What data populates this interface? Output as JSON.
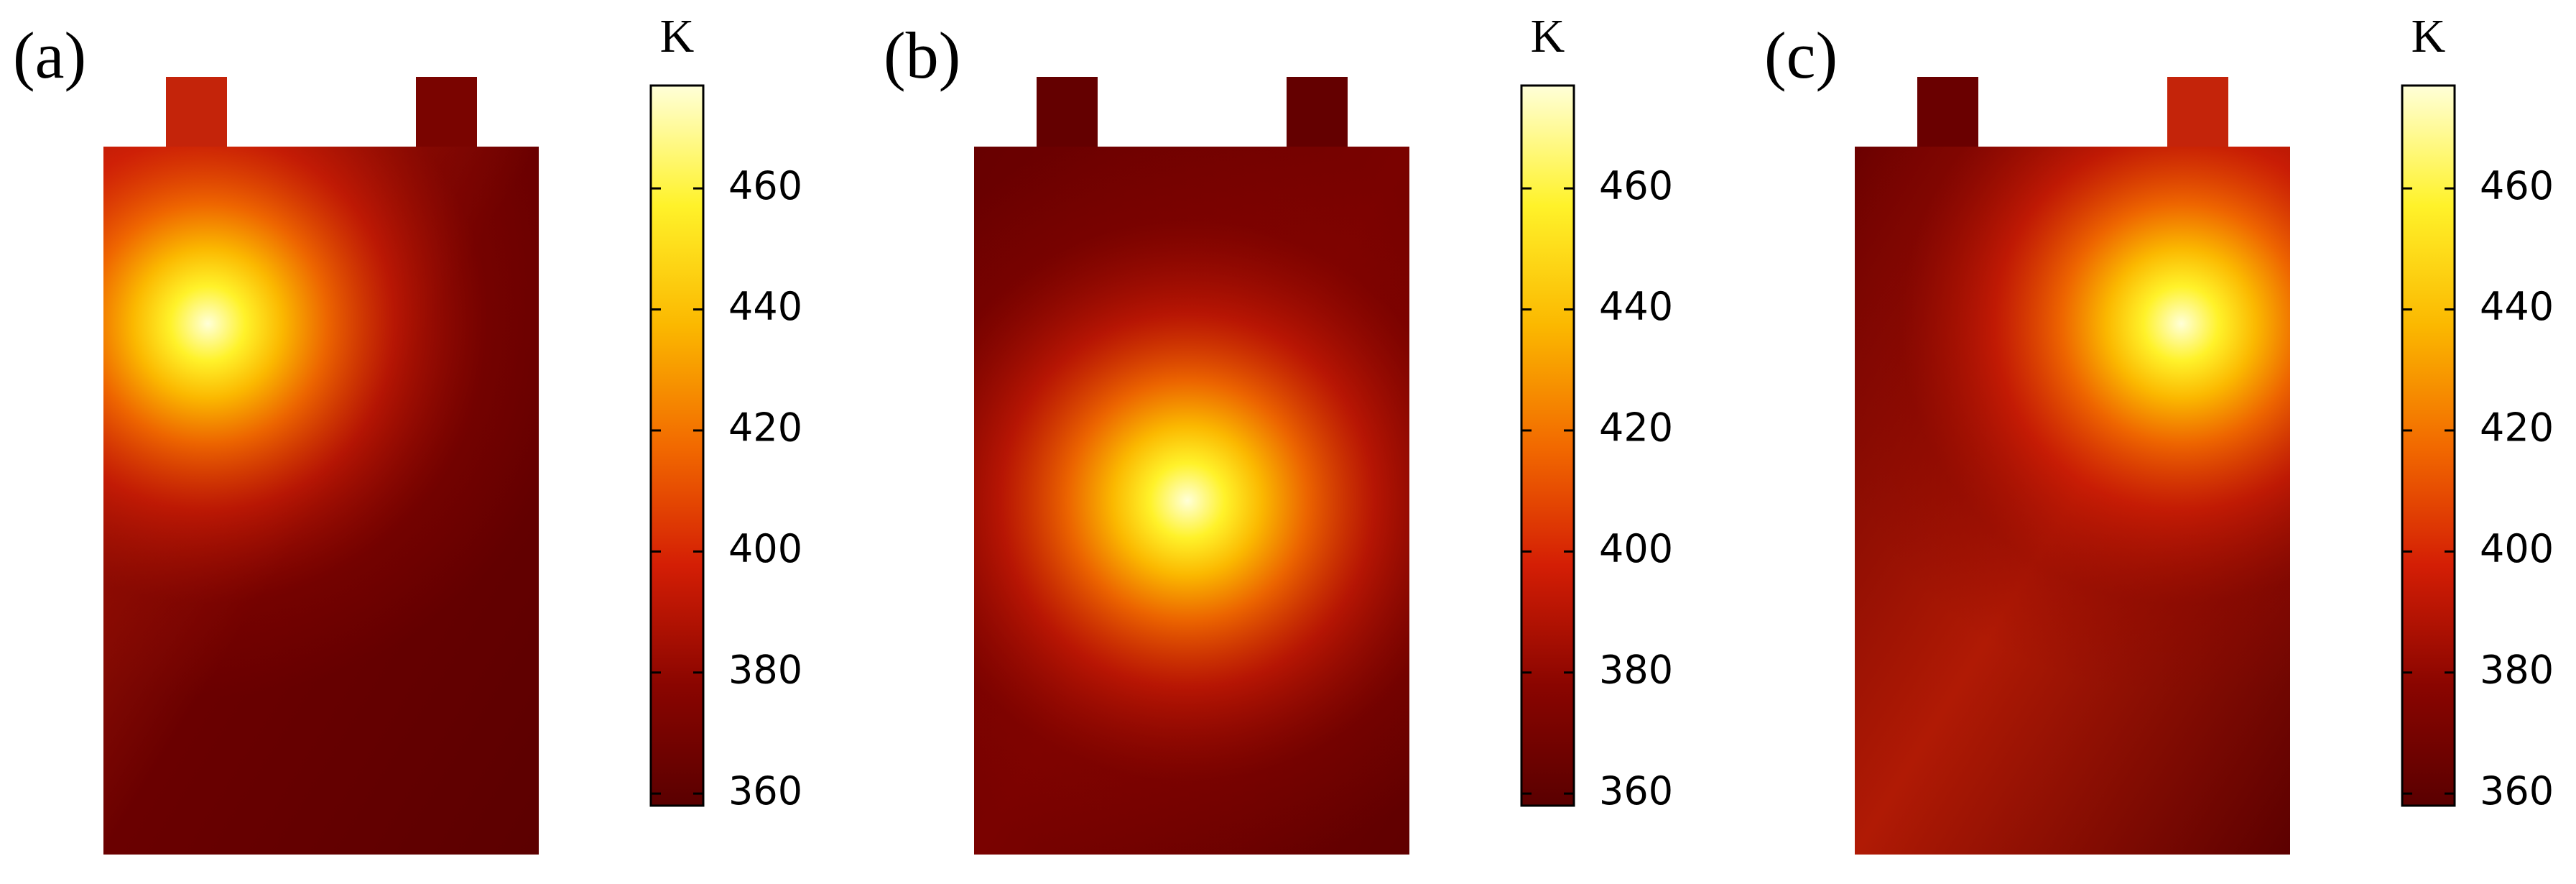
{
  "chart_data": [
    {
      "type": "heatmap",
      "title": "(a)",
      "colorbar_label": "K",
      "clim": [
        358,
        477
      ],
      "cticks": [
        360,
        380,
        400,
        420,
        440,
        460
      ],
      "colormap": [
        "#5a0000",
        "#8a0500",
        "#d41e05",
        "#f26a00",
        "#fbb800",
        "#fff22a",
        "#ffffd8"
      ]
    },
    {
      "type": "heatmap",
      "title": "(b)",
      "colorbar_label": "K",
      "clim": [
        358,
        477
      ],
      "cticks": [
        360,
        380,
        400,
        420,
        440,
        460
      ],
      "colormap": [
        "#5a0000",
        "#8a0500",
        "#d41e05",
        "#f26a00",
        "#fbb800",
        "#fff22a",
        "#ffffd8"
      ]
    },
    {
      "type": "heatmap",
      "title": "(c)",
      "colorbar_label": "K",
      "clim": [
        358,
        477
      ],
      "cticks": [
        360,
        380,
        400,
        420,
        440,
        460
      ],
      "colormap": [
        "#5a0000",
        "#8a0500",
        "#d41e05",
        "#f26a00",
        "#fbb800",
        "#fff22a",
        "#ffffd8"
      ]
    }
  ]
}
